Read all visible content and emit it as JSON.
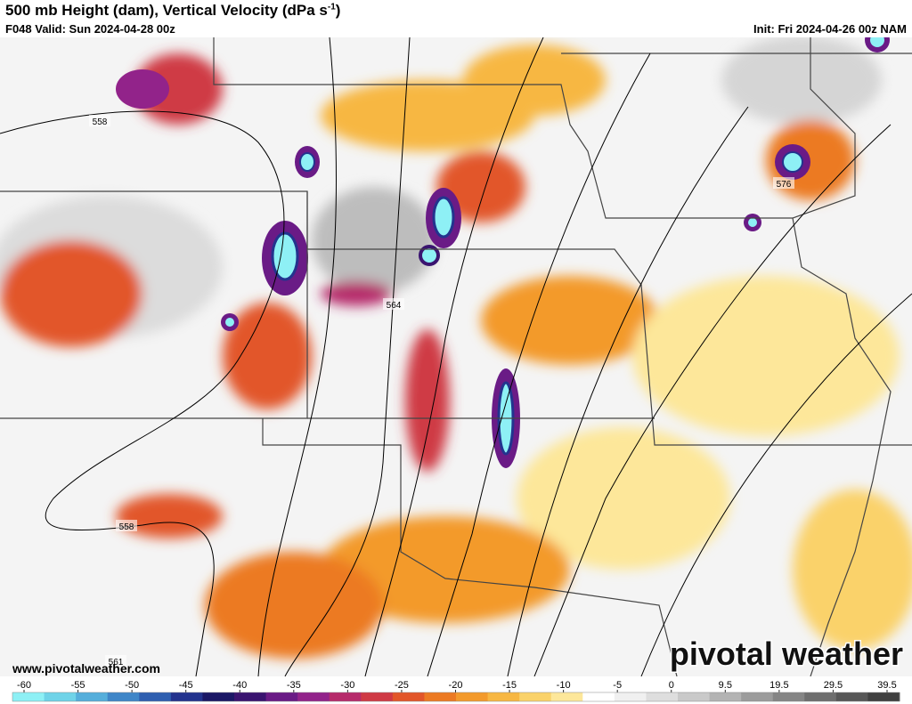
{
  "header": {
    "title": "500 mb Height (dam), Vertical Velocity (dPa s",
    "title_superscript": "-1",
    "title_end": ")",
    "valid": "F048 Valid: Sun 2024-04-28 00z",
    "init": "Init: Fri 2024-04-26 00z NAM"
  },
  "map": {
    "contour_labels": [
      558,
      564,
      576,
      558,
      561
    ],
    "website": "www.pivotalweather.com",
    "logo": "pivotal weather"
  },
  "colorbar": {
    "ticks": [
      -60,
      -55,
      -50,
      -45,
      -40,
      -35,
      -30,
      -25,
      -20,
      -15,
      -10,
      -5,
      0,
      9.5,
      19.5,
      29.5,
      39.5
    ],
    "colors": [
      "#8ef0f5",
      "#6fd3e8",
      "#55aedb",
      "#3f86c8",
      "#2f5fb0",
      "#23338e",
      "#1b1866",
      "#3a1470",
      "#6a1b86",
      "#92238a",
      "#b62b6b",
      "#cf3a45",
      "#e2562a",
      "#ec7a23",
      "#f39a2c",
      "#f7b743",
      "#fad26a",
      "#fde79a",
      "#ffffff",
      "#f0f0f0",
      "#dedede",
      "#c9c9c9",
      "#b3b3b3",
      "#9c9c9c",
      "#858585",
      "#6e6e6e",
      "#575757",
      "#404040"
    ]
  }
}
